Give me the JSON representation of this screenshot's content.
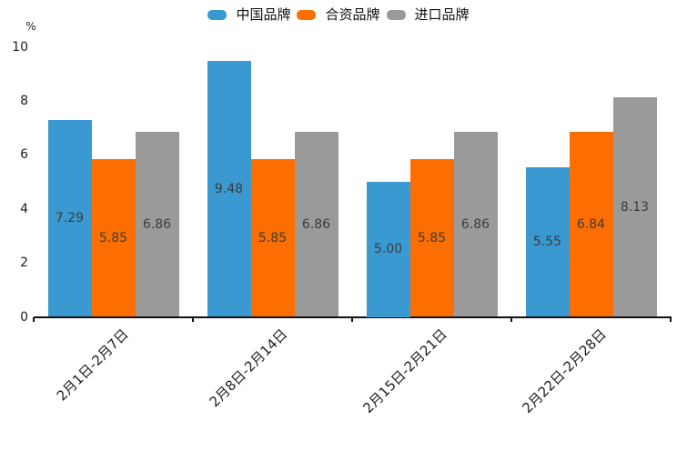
{
  "chart_data": {
    "type": "bar",
    "title": "",
    "categories": [
      "2月1日-2月7日",
      "2月8日-2月14日",
      "2月15日-2月21日",
      "2月22日-2月28日"
    ],
    "series": [
      {
        "name": "中国品牌",
        "color": "#3A99D0",
        "values": [
          7.29,
          9.48,
          5.0,
          5.55
        ]
      },
      {
        "name": "合资品牌",
        "color": "#FC6E02",
        "values": [
          5.85,
          5.85,
          5.85,
          6.84
        ]
      },
      {
        "name": "进口品牌",
        "color": "#9A9A9A",
        "values": [
          6.86,
          6.86,
          6.86,
          8.13
        ]
      }
    ],
    "value_labels": [
      [
        "7.29",
        "9.48",
        "5.00",
        "5.55"
      ],
      [
        "5.85",
        "5.85",
        "5.85",
        "6.84"
      ],
      [
        "6.86",
        "6.86",
        "6.86",
        "8.13"
      ]
    ],
    "xlabel": "",
    "ylabel": "%",
    "yticks": [
      0,
      2,
      4,
      6,
      8,
      10
    ],
    "ylim": [
      0,
      10
    ],
    "grid": false,
    "legend_position": "top-center",
    "colors": {
      "axis": "#111111",
      "tick_label": "#1f1f1f",
      "bar_value_label": "#3c3c3c",
      "background": "#ffffff"
    }
  }
}
